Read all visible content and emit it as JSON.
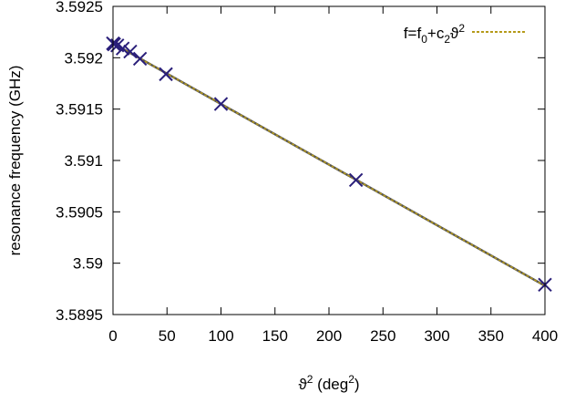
{
  "chart_data": {
    "type": "scatter",
    "xlabel": {
      "base": "ϑ",
      "sup": "2",
      "mid": " (deg",
      "sup2": "2",
      "end": ")"
    },
    "ylabel": "resonance frequency (GHz)",
    "xlim": [
      0,
      400
    ],
    "ylim": [
      3.5895,
      3.5925
    ],
    "xticks": [
      0,
      50,
      100,
      150,
      200,
      250,
      300,
      350,
      400
    ],
    "xtick_labels": [
      "0",
      "50",
      "100",
      "150",
      "200",
      "250",
      "300",
      "350",
      "400"
    ],
    "yticks": [
      3.5895,
      3.59,
      3.5905,
      3.591,
      3.5915,
      3.592,
      3.5925
    ],
    "ytick_labels": [
      "3.5895",
      "3.59",
      "3.5905",
      "3.591",
      "3.5915",
      "3.592",
      "3.5925"
    ],
    "grid": false,
    "legend_position": "top-right",
    "series": [
      {
        "kind": "points",
        "marker": "x",
        "color": "#2a1f7a",
        "x": [
          0,
          1,
          4,
          9,
          16,
          25,
          49,
          100,
          225,
          400
        ],
        "y": [
          3.59214,
          3.59213,
          3.59212,
          3.59209,
          3.59206,
          3.59199,
          3.59184,
          3.59155,
          3.59081,
          3.58979
        ]
      },
      {
        "kind": "fit",
        "color": "#b59a1a",
        "dash": true,
        "legend": {
          "f": "f=f",
          "sub0": "0",
          "plus": "+c",
          "sub2": "2",
          "theta": "ϑ",
          "sup": "2"
        },
        "x": [
          0,
          400
        ],
        "y": [
          3.59214,
          3.58978
        ]
      }
    ]
  }
}
